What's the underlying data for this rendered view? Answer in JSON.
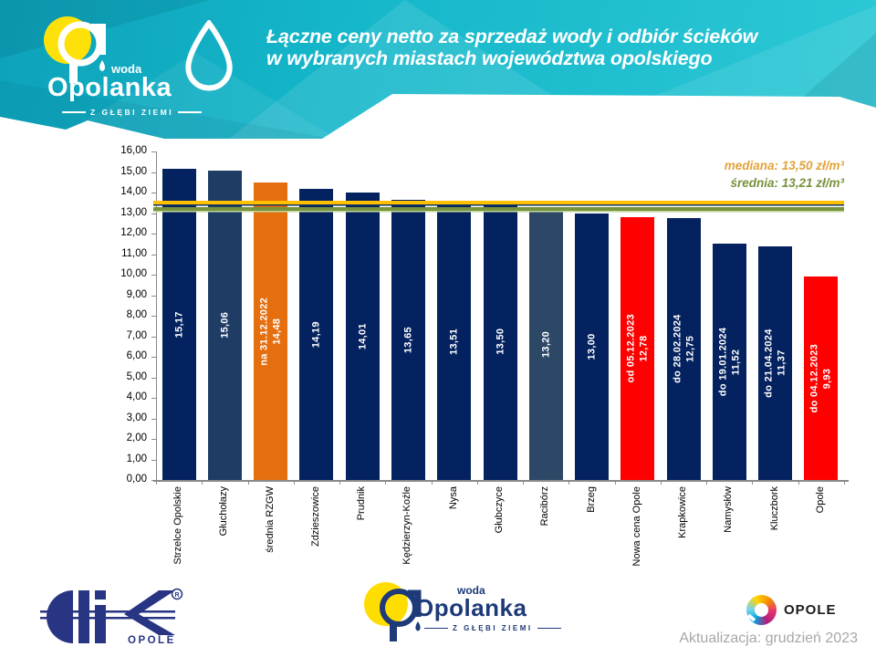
{
  "header": {
    "title_line1": "Łączne ceny netto za sprzedaż wody i odbiór ścieków",
    "title_line2": "w wybranych miastach województwa opolskiego",
    "logo": {
      "brand_top": "woda",
      "brand": "Opolanka",
      "tagline": "Z GŁĘBI ZIEMI"
    }
  },
  "chart_data": {
    "type": "bar",
    "title": "Łączne ceny netto za sprzedaż wody i odbiór ścieków w wybranych miastach województwa opolskiego",
    "unit": "zł/m³",
    "ylim": [
      0,
      16
    ],
    "yticks": [
      "16,00",
      "15,00",
      "14,00",
      "13,00",
      "12,00",
      "11,00",
      "10,00",
      "9,00",
      "8,00",
      "7,00",
      "6,00",
      "5,00",
      "4,00",
      "3,00",
      "2,00",
      "1,00",
      "0,00"
    ],
    "categories": [
      "Strzelce Opolskie",
      "Głuchołazy",
      "średnia RZGW",
      "Zdzieszowice",
      "Prudnik",
      "Kędzierzyn-Koźle",
      "Nysa",
      "Głubczyce",
      "Racibórz",
      "Brzeg",
      "Nowa cena Opole",
      "Krapkowice",
      "Namysłów",
      "Kluczbork",
      "Opole"
    ],
    "values": [
      15.17,
      15.06,
      14.48,
      14.19,
      14.01,
      13.65,
      13.51,
      13.5,
      13.2,
      13.0,
      12.78,
      12.75,
      11.52,
      11.37,
      9.93
    ],
    "value_labels": [
      "15,17",
      "15,06",
      "14,48",
      "14,19",
      "14,01",
      "13,65",
      "13,51",
      "13,50",
      "13,20",
      "13,00",
      "12,78",
      "12,75",
      "11,52",
      "11,37",
      "9,93"
    ],
    "annotations": [
      "",
      "",
      "na 31.12.2022",
      "",
      "",
      "",
      "",
      "",
      "",
      "",
      "od 05.12.2023",
      "do 28.02.2024",
      "do 19.01.2024",
      "do 21.04.2024",
      "do 04.12.2023"
    ],
    "bar_colors": [
      "navy",
      "navy_light",
      "orange",
      "navy",
      "navy",
      "navy",
      "navy",
      "navy",
      "steel",
      "navy",
      "red",
      "navy",
      "navy",
      "navy",
      "red"
    ],
    "reference_lines": [
      {
        "label": "mediana: 13,50 zł/m³",
        "value": 13.5,
        "color": "#FFC000",
        "shadow": "#17365D",
        "text_color": "#E2A33B"
      },
      {
        "label": "średnia: 13,21 zł/m³",
        "value": 13.21,
        "color": "#77933C",
        "shadow": "#C3D69B",
        "text_color": "#77933C"
      }
    ],
    "legend": null,
    "grid": false
  },
  "colors": {
    "navy": "#04225F",
    "navy_light": "#1F3C64",
    "steel": "#2D4867",
    "orange": "#E56E0E",
    "red": "#FE0000",
    "teal": "#15B7CA"
  },
  "footer": {
    "wik": {
      "caption": "OPOLE",
      "registered": "R"
    },
    "opolanka": {
      "brand_top": "woda",
      "brand": "Opolanka",
      "tagline": "Z GŁĘBI ZIEMI"
    },
    "opole_city": {
      "label": "OPOLE"
    },
    "update": "Aktualizacja: grudzień 2023"
  }
}
